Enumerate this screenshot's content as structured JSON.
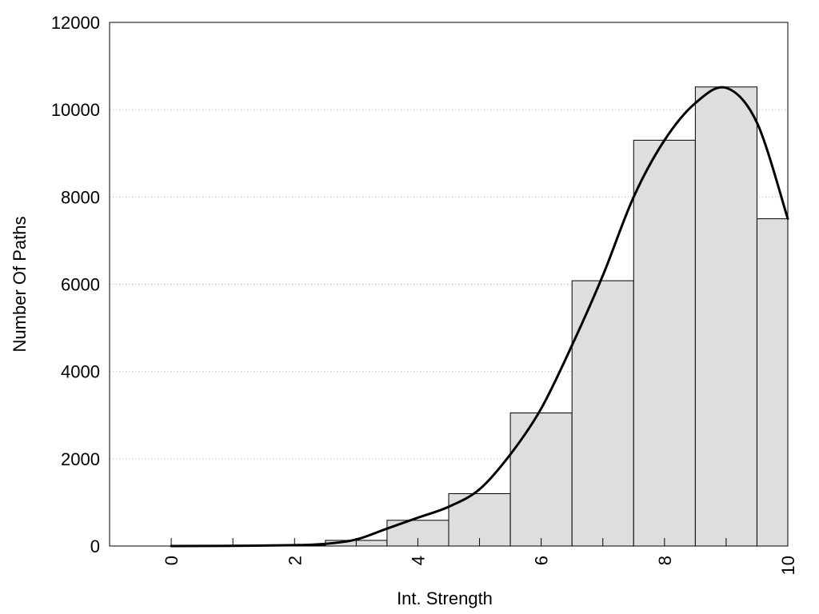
{
  "chart_data": {
    "type": "bar",
    "xlabel": "Int. Strength",
    "ylabel": "Number Of Paths",
    "xlim": [
      -1,
      10
    ],
    "ylim": [
      0,
      12000
    ],
    "x_ticks": [
      "0",
      "2",
      "4",
      "6",
      "8",
      "10"
    ],
    "y_ticks": [
      "0",
      "2000",
      "4000",
      "6000",
      "8000",
      "10000",
      "12000"
    ],
    "grid": "horizontal dotted",
    "bars": [
      {
        "x": 0,
        "value": 0
      },
      {
        "x": 1,
        "value": 0
      },
      {
        "x": 2,
        "value": 20
      },
      {
        "x": 3,
        "value": 130
      },
      {
        "x": 4,
        "value": 590
      },
      {
        "x": 5,
        "value": 1200
      },
      {
        "x": 6,
        "value": 3050
      },
      {
        "x": 7,
        "value": 6080
      },
      {
        "x": 8,
        "value": 9300
      },
      {
        "x": 9,
        "value": 10520
      },
      {
        "x": 10,
        "value": 7500
      }
    ],
    "curve": {
      "x": [
        0,
        1,
        2,
        2.5,
        3,
        3.5,
        4,
        4.5,
        5,
        5.5,
        6,
        6.5,
        7,
        7.5,
        8,
        8.5,
        9,
        9.5,
        10
      ],
      "y": [
        0,
        5,
        20,
        50,
        150,
        400,
        650,
        900,
        1300,
        2100,
        3150,
        4600,
        6200,
        8000,
        9300,
        10150,
        10500,
        9700,
        7500
      ]
    },
    "colors": {
      "bar_fill": "#dedede",
      "bar_stroke": "#000000",
      "curve": "#000000"
    }
  }
}
